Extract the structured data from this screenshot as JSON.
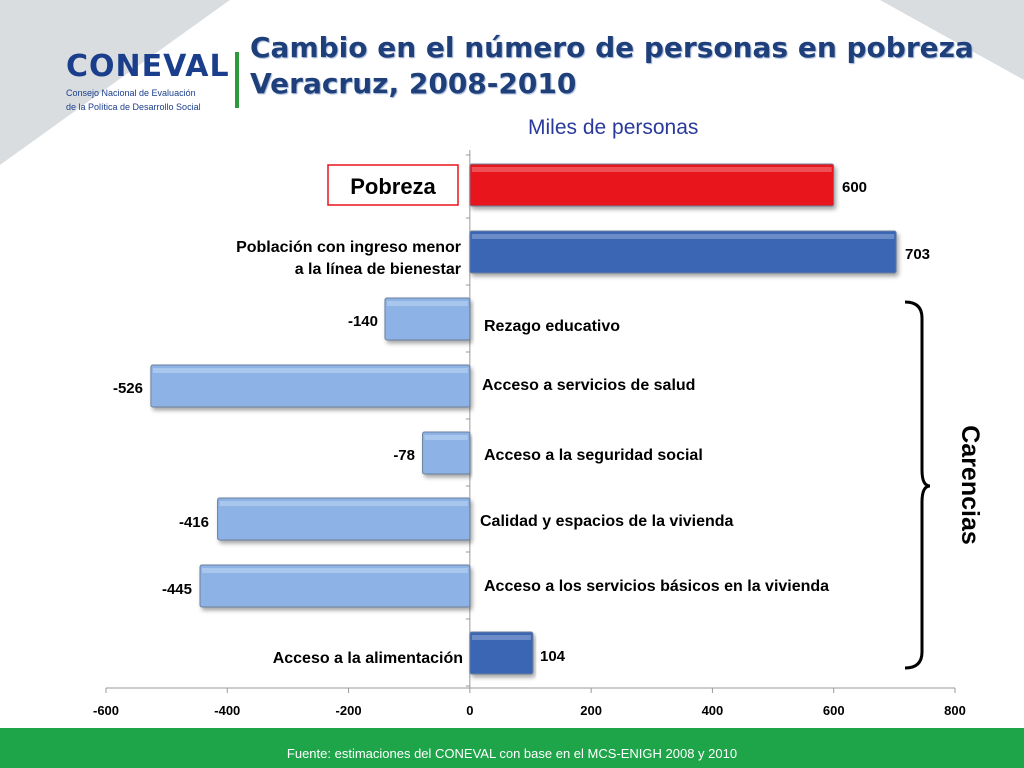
{
  "header": {
    "logo_word": "CONEVAL",
    "logo_sub_1": "Consejo Nacional de Evaluación",
    "logo_sub_2": "de la Política de Desarrollo Social",
    "title": "Cambio en el número de personas en pobreza\nVeracruz, 2008-2010"
  },
  "colors": {
    "red_bar": "#e8141b",
    "dark_blue_bar": "#3a66b4",
    "light_blue_bar": "#8db3e6",
    "footer_green": "#1ea449",
    "title_blue": "#1e3f7a"
  },
  "chart_data": {
    "type": "bar",
    "orientation": "horizontal",
    "title": "",
    "subtitle": "Miles de personas",
    "categories": [
      "Pobreza",
      "Población con ingreso menor a la línea de bienestar",
      "Rezago educativo",
      "Acceso a servicios de salud",
      "Acceso a  la seguridad social",
      "Calidad y espacios de la vivienda",
      "Acceso a los servicios básicos en la vivienda",
      "Acceso a la alimentación"
    ],
    "values": [
      600,
      703,
      -140,
      -526,
      -78,
      -416,
      -445,
      104
    ],
    "value_labels": [
      "600",
      "703",
      "-140",
      "-526",
      "-78",
      "-416",
      "-445",
      "104"
    ],
    "bar_colors": [
      "red",
      "dark_blue",
      "light_blue",
      "light_blue",
      "light_blue",
      "light_blue",
      "light_blue",
      "dark_blue"
    ],
    "xlim": [
      -600,
      800
    ],
    "x_ticks": [
      -600,
      -400,
      -200,
      0,
      200,
      400,
      600,
      800
    ],
    "x_tick_labels": [
      "-600",
      "-400",
      "-200",
      "0",
      "200",
      "400",
      "600",
      "800"
    ],
    "bracket_label": "Carencias",
    "grid": false
  },
  "footer": {
    "source": "Fuente: estimaciones del CONEVAL con base en el MCS-ENIGH 2008 y 2010"
  }
}
